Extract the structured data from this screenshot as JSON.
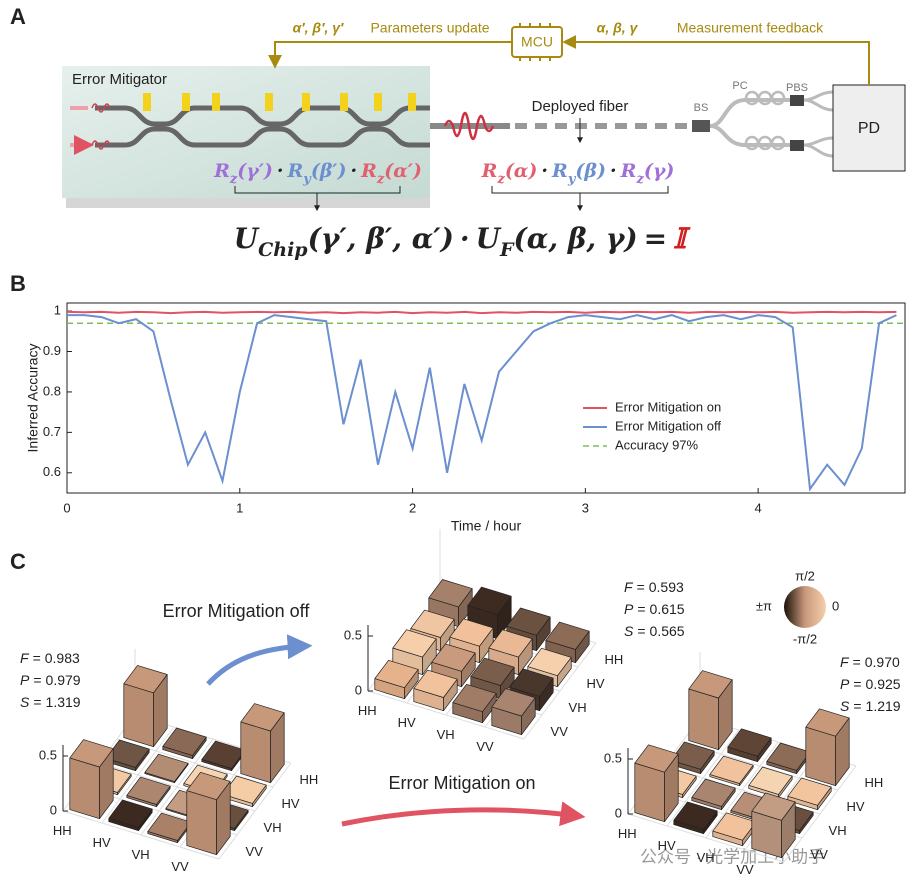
{
  "panel_a": {
    "label": "A",
    "chip_label": "Error Mitigator",
    "update_params": "α′, β′, γ′",
    "update_label": "Parameters update",
    "mcu": "MCU",
    "feedback_params": "α, β, γ",
    "feedback_label": "Measurement feedback",
    "fiber_label": "Deployed fiber",
    "bs": "BS",
    "pc": "PC",
    "pbs": "PBS",
    "pd": "PD",
    "separator": "·",
    "chip_ops": [
      {
        "symbol": "R",
        "sub": "z",
        "arg": "(γ′)",
        "color": "#a070d8"
      },
      {
        "symbol": "R",
        "sub": "y",
        "arg": "(β′)",
        "color": "#6b8fcf"
      },
      {
        "symbol": "R",
        "sub": "z",
        "arg": "(α′)",
        "color": "#e06070"
      }
    ],
    "fiber_ops": [
      {
        "symbol": "R",
        "sub": "z",
        "arg": "(α)",
        "color": "#e06070"
      },
      {
        "symbol": "R",
        "sub": "y",
        "arg": "(β)",
        "color": "#6b8fcf"
      },
      {
        "symbol": "R",
        "sub": "z",
        "arg": "(γ)",
        "color": "#a070d8"
      }
    ],
    "equation": {
      "u1": "U",
      "sub1": "Chip",
      "arg1": "(γ′, β′, α′)",
      "dot": "·",
      "u2": "U",
      "sub2": "F",
      "arg2": "(α, β, γ)",
      "equals": "=",
      "identity": "𝕀"
    }
  },
  "panel_b": {
    "label": "B"
  },
  "chart_data": [
    {
      "type": "line",
      "x_label": "Time / hour",
      "y_label": "Inferred Accuracy",
      "x": [
        0,
        0.1,
        0.2,
        0.3,
        0.4,
        0.5,
        0.6,
        0.7,
        0.8,
        0.9,
        1.0,
        1.1,
        1.2,
        1.3,
        1.4,
        1.5,
        1.6,
        1.7,
        1.8,
        1.9,
        2.0,
        2.1,
        2.2,
        2.3,
        2.4,
        2.5,
        2.6,
        2.7,
        2.8,
        2.9,
        3.0,
        3.1,
        3.2,
        3.3,
        3.4,
        3.5,
        3.6,
        3.7,
        3.8,
        3.9,
        4.0,
        4.1,
        4.2,
        4.3,
        4.4,
        4.5,
        4.6,
        4.7,
        4.8
      ],
      "xlim": [
        0,
        4.85
      ],
      "xticks": [
        0,
        1,
        2,
        3,
        4
      ],
      "ylim": [
        0.55,
        1.02
      ],
      "yticks": [
        0.6,
        0.7,
        0.8,
        0.9,
        1
      ],
      "legend": "right",
      "series": [
        {
          "name": "Error Mitigation on",
          "color": "#e05363",
          "values": [
            0.998,
            0.997,
            0.998,
            0.996,
            0.998,
            0.997,
            0.995,
            0.997,
            0.998,
            0.996,
            0.997,
            0.998,
            0.997,
            0.998,
            0.996,
            0.997,
            0.995,
            0.997,
            0.996,
            0.998,
            0.995,
            0.997,
            0.996,
            0.998,
            0.995,
            0.997,
            0.996,
            0.998,
            0.997,
            0.998,
            0.996,
            0.998,
            0.997,
            0.998,
            0.997,
            0.998,
            0.996,
            0.998,
            0.997,
            0.998,
            0.997,
            0.998,
            0.996,
            0.997,
            0.998,
            0.997,
            0.998,
            0.997,
            0.998
          ]
        },
        {
          "name": "Error Mitigation off",
          "color": "#6b8fcf",
          "values": [
            0.99,
            0.99,
            0.985,
            0.97,
            0.98,
            0.95,
            0.78,
            0.62,
            0.7,
            0.58,
            0.8,
            0.97,
            0.99,
            0.985,
            0.98,
            0.975,
            0.72,
            0.88,
            0.62,
            0.8,
            0.66,
            0.86,
            0.6,
            0.82,
            0.68,
            0.85,
            0.9,
            0.95,
            0.97,
            0.985,
            0.99,
            0.985,
            0.98,
            0.99,
            0.98,
            0.99,
            0.975,
            0.985,
            0.99,
            0.98,
            0.99,
            0.985,
            0.96,
            0.56,
            0.62,
            0.57,
            0.66,
            0.97,
            0.99
          ]
        }
      ],
      "hline": {
        "name": "Accuracy 97%",
        "color": "#7cbf5a",
        "y": 0.97
      }
    },
    {
      "type": "bar3d",
      "categories": [
        "HH",
        "HV",
        "VH",
        "VV"
      ],
      "zlim": [
        0,
        0.6
      ],
      "zticks": [
        0,
        0.5
      ],
      "values": [
        [
          0.18,
          0.12,
          0.16,
          0.1
        ],
        [
          0.22,
          0.15,
          0.14,
          0.12
        ],
        [
          0.14,
          0.16,
          0.12,
          0.1
        ],
        [
          0.12,
          0.1,
          0.13,
          0.17
        ]
      ],
      "colors": [
        [
          "#a5806a",
          "#f0c6a2",
          "#f6cfaa",
          "#e6b28c"
        ],
        [
          "#3d2b22",
          "#f2c09b",
          "#c99a7d",
          "#f1c29c"
        ],
        [
          "#6b5140",
          "#e9b996",
          "#7a5d4b",
          "#a07b66"
        ],
        [
          "#8c6b57",
          "#f6d0ad",
          "#4a372c",
          "#a98570"
        ]
      ],
      "metrics": [
        {
          "name": "F",
          "value": "0.593"
        },
        {
          "name": "P",
          "value": "0.615"
        },
        {
          "name": "S",
          "value": "0.565"
        }
      ]
    },
    {
      "type": "bar3d",
      "categories": [
        "HH",
        "HV",
        "VH",
        "VV"
      ],
      "zlim": [
        0,
        0.6
      ],
      "zticks": [
        0,
        0.5
      ],
      "values": [
        [
          0.49,
          0.03,
          0.02,
          0.47
        ],
        [
          0.03,
          0.01,
          0.02,
          0.03
        ],
        [
          0.02,
          0.02,
          0.01,
          0.02
        ],
        [
          0.47,
          0.03,
          0.02,
          0.5
        ]
      ],
      "colors": [
        [
          "#c8987b",
          "#6e5545",
          "#f3c9a4",
          "#c8987b"
        ],
        [
          "#8a6a56",
          "#b38c74",
          "#ad866f",
          "#3c2a21"
        ],
        [
          "#5a4032",
          "#f5d4b2",
          "#c29c83",
          "#aa8069"
        ],
        [
          "#c8987b",
          "#f4cca6",
          "#6a4f3f",
          "#c8987b"
        ]
      ],
      "metrics": [
        {
          "name": "F",
          "value": "0.983"
        },
        {
          "name": "P",
          "value": "0.979"
        },
        {
          "name": "S",
          "value": "1.319"
        }
      ]
    },
    {
      "type": "bar3d",
      "categories": [
        "HH",
        "HV",
        "VH",
        "VV"
      ],
      "zlim": [
        0,
        0.6
      ],
      "zticks": [
        0,
        0.5
      ],
      "values": [
        [
          0.47,
          0.04,
          0.03,
          0.45
        ],
        [
          0.05,
          0.02,
          0.03,
          0.04
        ],
        [
          0.03,
          0.03,
          0.02,
          0.05
        ],
        [
          0.45,
          0.04,
          0.03,
          0.34
        ]
      ],
      "colors": [
        [
          "#c8987b",
          "#7a5d4b",
          "#f3c9a4",
          "#c8987b"
        ],
        [
          "#5e4536",
          "#f0c29e",
          "#a98570",
          "#3c2a21"
        ],
        [
          "#8c6b57",
          "#f5d4b2",
          "#b88f76",
          "#f1c29c"
        ],
        [
          "#c8987b",
          "#f2c59f",
          "#6a4f3f",
          "#c29c83"
        ]
      ],
      "metrics": [
        {
          "name": "F",
          "value": "0.970"
        },
        {
          "name": "P",
          "value": "0.925"
        },
        {
          "name": "S",
          "value": "1.219"
        }
      ]
    }
  ],
  "panel_c": {
    "label": "C",
    "off_label": "Error Mitigation off",
    "on_label": "Error Mitigation on",
    "equals": "=",
    "colorbar": {
      "top": "π/2",
      "left": "±π",
      "right": "0",
      "bottom": "-π/2"
    }
  },
  "watermark": "公众号 · 光学加工小助手"
}
